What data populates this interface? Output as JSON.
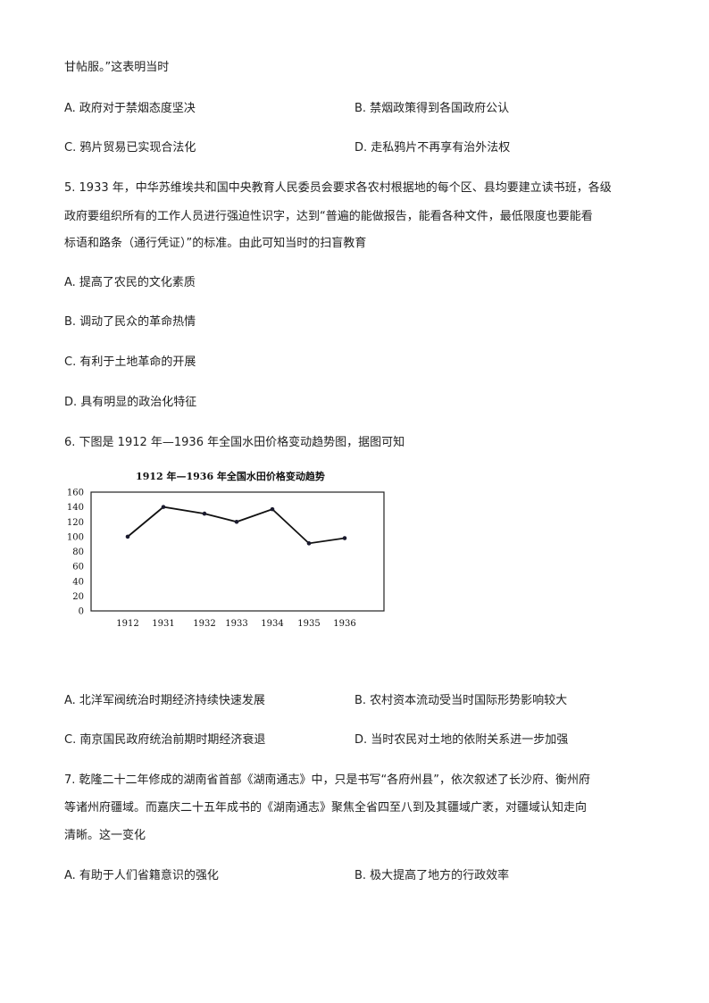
{
  "q4": {
    "tail": "甘帖服。”这表明当时",
    "options": [
      "A. 政府对于禁烟态度坚决",
      "B. 禁烟政策得到各国政府公认",
      "C. 鸦片贸易已实现合法化",
      "D. 走私鸦片不再享有治外法权"
    ]
  },
  "q5": {
    "lines": [
      "5. 1933 年，中华苏维埃共和国中央教育人民委员会要求各农村根据地的每个区、县均要建立读书班，各级",
      "政府要组织所有的工作人员进行强迫性识字，达到“普遍的能做报告，能看各种文件，最低限度也要能看",
      "标语和路条（通行凭证）”的标准。由此可知当时的扫盲教育"
    ],
    "options": [
      "A. 提高了农民的文化素质",
      "B. 调动了民众的革命热情",
      "C. 有利于土地革命的开展",
      "D. 具有明显的政治化特征"
    ]
  },
  "q6": {
    "stem": "6. 下图是 1912 年—1936 年全国水田价格变动趋势图，据图可知",
    "options": [
      "A. 北洋军阀统治时期经济持续快速发展",
      "B. 农村资本流动受当时国际形势影响较大",
      "C. 南京国民政府统治前期时期经济衰退",
      "D. 当时农民对土地的依附关系进一步加强"
    ]
  },
  "chart_data": {
    "type": "line",
    "title": "1912 年—1936 年全国水田价格变动趋势",
    "categories": [
      "1912",
      "1931",
      "1932",
      "1933",
      "1934",
      "1935",
      "1936"
    ],
    "values": [
      100,
      140,
      131,
      120,
      137,
      91,
      98
    ],
    "ylim": [
      0,
      160
    ],
    "yticks": [
      "0",
      "20",
      "40",
      "60",
      "80",
      "100",
      "120",
      "140",
      "160"
    ],
    "grid": false,
    "xlabel": "",
    "ylabel": ""
  },
  "q7": {
    "lines": [
      "7. 乾隆二十二年修成的湖南省首部《湖南通志》中，只是书写“各府州县”，依次叙述了长沙府、衡州府",
      "等诸州府疆域。而嘉庆二十五年成书的《湖南通志》聚焦全省四至八到及其疆域广袤，对疆域认知走向",
      "清晰。这一变化"
    ],
    "options": [
      "A. 有助于人们省籍意识的强化",
      "B. 极大提高了地方的行政效率"
    ]
  }
}
